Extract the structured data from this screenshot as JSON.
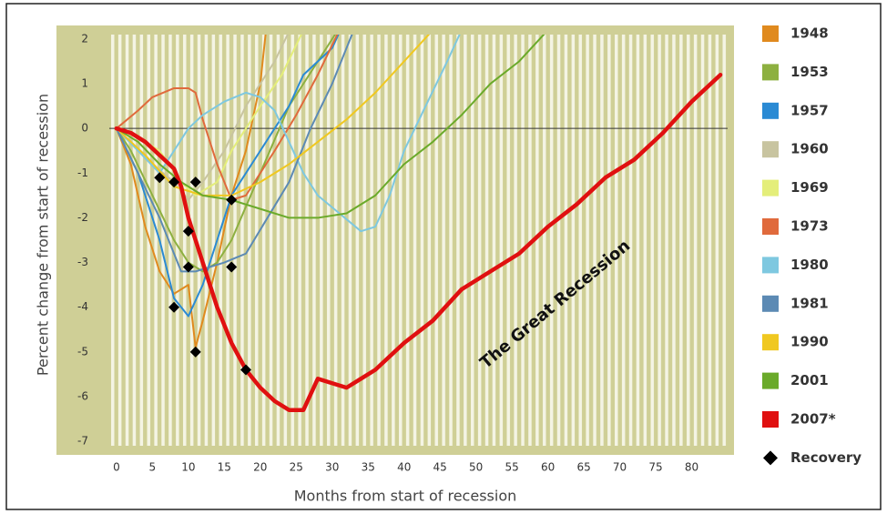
{
  "chart_data": {
    "type": "line",
    "y_label": "Percent change from start of recession",
    "x_label": "Months from start of recession",
    "annotation": "The Great Recession",
    "xlim": [
      -1,
      85
    ],
    "ylim": [
      -7.1,
      2.1
    ],
    "xticks": [
      0,
      5,
      10,
      15,
      20,
      25,
      30,
      35,
      40,
      45,
      50,
      55,
      60,
      65,
      70,
      75,
      80
    ],
    "yticks": [
      -7,
      -6,
      -5,
      -4,
      -3,
      -2,
      -1,
      0,
      1,
      2
    ],
    "legend": "right",
    "series": [
      {
        "name": "1948",
        "color": "#e08a1e",
        "x": [
          0,
          2,
          4,
          6,
          8,
          10,
          11,
          12,
          14,
          16,
          18,
          20,
          21
        ],
        "values": [
          0,
          -0.8,
          -2.2,
          -3.2,
          -3.7,
          -3.5,
          -4.9,
          -4.3,
          -3,
          -1.5,
          -0.5,
          1,
          2.5
        ]
      },
      {
        "name": "1953",
        "color": "#8db040",
        "x": [
          0,
          2,
          5,
          8,
          10,
          12,
          14,
          16,
          20,
          24,
          28,
          32
        ],
        "values": [
          0,
          -0.5,
          -1.5,
          -2.5,
          -3,
          -3.2,
          -3,
          -2.5,
          -1,
          0.5,
          1.5,
          2.5
        ]
      },
      {
        "name": "1957",
        "color": "#2a8ad4",
        "x": [
          0,
          3,
          6,
          8,
          10,
          12,
          14,
          16,
          20,
          24,
          26,
          30,
          32
        ],
        "values": [
          0,
          -1,
          -2.5,
          -3.8,
          -4.2,
          -3.5,
          -2.5,
          -1.5,
          -0.5,
          0.5,
          1.2,
          1.8,
          2.5
        ]
      },
      {
        "name": "1960",
        "color": "#c8c4a0",
        "x": [
          0,
          2,
          5,
          8,
          10,
          12,
          15,
          18,
          20,
          22,
          25
        ],
        "values": [
          0,
          -0.3,
          -0.8,
          -1.2,
          -1.6,
          -1.2,
          -0.5,
          0.5,
          1,
          1.5,
          2.5
        ]
      },
      {
        "name": "1969",
        "color": "#e4ee7a",
        "x": [
          0,
          3,
          6,
          9,
          11,
          14,
          16,
          18,
          20,
          23,
          26
        ],
        "values": [
          0,
          -0.2,
          -0.5,
          -1.2,
          -1.5,
          -1.2,
          -0.5,
          0,
          0.5,
          1.2,
          2.2
        ]
      },
      {
        "name": "1973",
        "color": "#e06a3c",
        "x": [
          0,
          3,
          5,
          8,
          10,
          11,
          12,
          14,
          16,
          18,
          22,
          25,
          28,
          31
        ],
        "values": [
          0,
          0.4,
          0.7,
          0.9,
          0.9,
          0.8,
          0.2,
          -0.8,
          -1.6,
          -1.5,
          -0.5,
          0.3,
          1.2,
          2.2
        ]
      },
      {
        "name": "1980",
        "color": "#7ec8e0",
        "x": [
          0,
          3,
          6,
          8,
          10,
          12,
          15,
          18,
          20,
          22,
          24,
          26,
          28,
          31,
          34,
          36,
          38,
          40,
          43,
          46,
          48
        ],
        "values": [
          0,
          -0.5,
          -1,
          -0.5,
          0,
          0.3,
          0.6,
          0.8,
          0.7,
          0.4,
          -0.3,
          -1,
          -1.5,
          -1.9,
          -2.3,
          -2.2,
          -1.5,
          -0.5,
          0.5,
          1.5,
          2.2
        ]
      },
      {
        "name": "1981",
        "color": "#5c8ab4",
        "x": [
          0,
          3,
          6,
          9,
          11,
          13,
          15,
          18,
          21,
          24,
          27,
          30,
          33
        ],
        "values": [
          0,
          -1,
          -2,
          -3.2,
          -3.2,
          -3.1,
          -3,
          -2.8,
          -2,
          -1.2,
          0,
          1,
          2.2
        ]
      },
      {
        "name": "1990",
        "color": "#f0c820",
        "x": [
          0,
          4,
          8,
          12,
          16,
          20,
          24,
          28,
          32,
          36,
          40,
          44
        ],
        "values": [
          0,
          -0.6,
          -1.3,
          -1.5,
          -1.5,
          -1.2,
          -0.8,
          -0.3,
          0.2,
          0.8,
          1.5,
          2.2
        ]
      },
      {
        "name": "2001",
        "color": "#6aaa2a",
        "x": [
          0,
          3,
          6,
          9,
          12,
          16,
          20,
          24,
          28,
          32,
          36,
          40,
          44,
          48,
          52,
          56,
          60
        ],
        "values": [
          0,
          -0.3,
          -0.8,
          -1.2,
          -1.5,
          -1.6,
          -1.8,
          -2,
          -2,
          -1.9,
          -1.5,
          -0.8,
          -0.3,
          0.3,
          1,
          1.5,
          2.2
        ]
      },
      {
        "name": "2007*",
        "color": "#e01010",
        "x": [
          0,
          2,
          4,
          6,
          8,
          9,
          10,
          12,
          14,
          16,
          18,
          20,
          22,
          24,
          26,
          28,
          30,
          32,
          34,
          36,
          40,
          44,
          48,
          52,
          56,
          60,
          64,
          68,
          72,
          76,
          80,
          84
        ],
        "values": [
          0,
          -0.1,
          -0.3,
          -0.6,
          -0.9,
          -1.3,
          -2,
          -3,
          -4,
          -4.8,
          -5.4,
          -5.8,
          -6.1,
          -6.3,
          -6.3,
          -5.6,
          -5.7,
          -5.8,
          -5.6,
          -5.4,
          -4.8,
          -4.3,
          -3.6,
          -3.2,
          -2.8,
          -2.2,
          -1.7,
          -1.1,
          -0.7,
          -0.1,
          0.6,
          1.2
        ]
      },
      {
        "name": "Recovery",
        "color": "#000000",
        "marker": "diamond",
        "x": [
          6,
          8,
          11,
          10,
          10,
          8,
          11,
          16,
          16,
          18
        ],
        "values": [
          -1.1,
          -1.2,
          -1.2,
          -2.3,
          -3.1,
          -4,
          -5,
          -1.6,
          -3.1,
          -5.4
        ]
      }
    ]
  }
}
